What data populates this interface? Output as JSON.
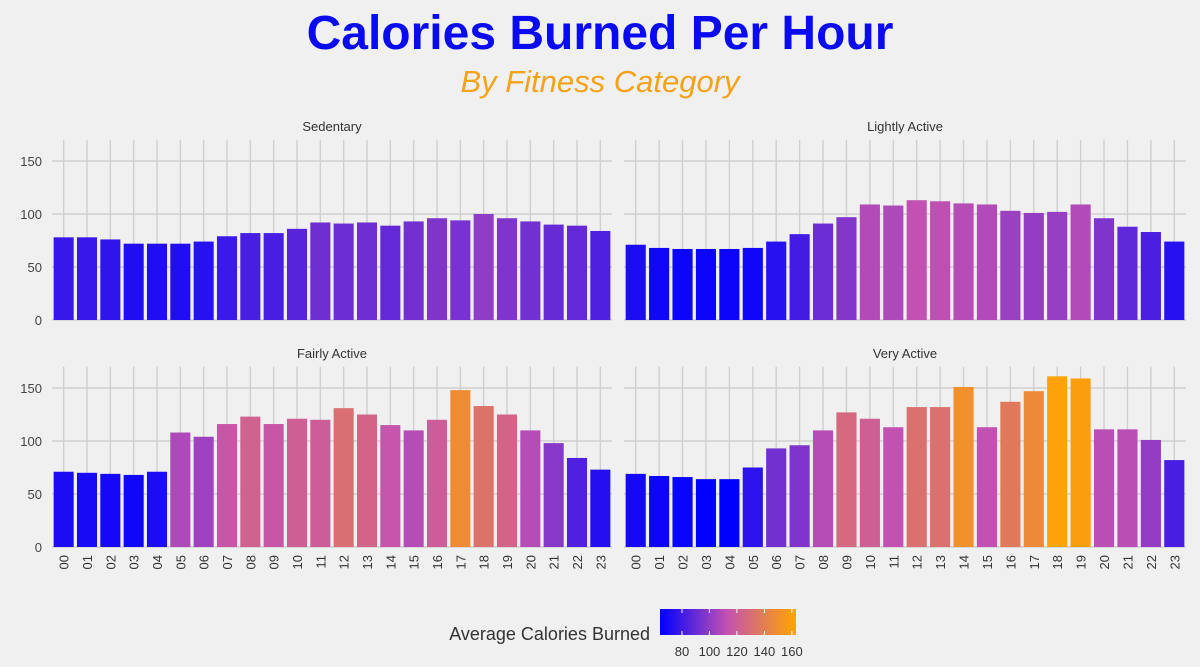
{
  "title": "Calories Burned Per Hour",
  "subtitle": "By Fitness Category",
  "chart_data": {
    "type": "bar",
    "categories": [
      "00",
      "01",
      "02",
      "03",
      "04",
      "05",
      "06",
      "07",
      "08",
      "09",
      "10",
      "11",
      "12",
      "13",
      "14",
      "15",
      "16",
      "17",
      "18",
      "19",
      "20",
      "21",
      "22",
      "23"
    ],
    "ylim": [
      0,
      170
    ],
    "yticks": [
      0,
      50,
      100,
      150
    ],
    "grid": true,
    "panels": [
      {
        "name": "Sedentary",
        "values": [
          78,
          78,
          76,
          72,
          72,
          72,
          74,
          79,
          82,
          82,
          86,
          92,
          91,
          92,
          89,
          93,
          96,
          94,
          100,
          96,
          93,
          90,
          89,
          84
        ]
      },
      {
        "name": "Lightly Active",
        "values": [
          71,
          68,
          67,
          67,
          67,
          68,
          74,
          81,
          91,
          97,
          109,
          108,
          113,
          112,
          110,
          109,
          103,
          101,
          102,
          109,
          96,
          88,
          83,
          74
        ]
      },
      {
        "name": "Fairly Active",
        "values": [
          71,
          70,
          69,
          68,
          71,
          108,
          104,
          116,
          123,
          116,
          121,
          120,
          131,
          125,
          115,
          110,
          120,
          148,
          133,
          125,
          110,
          98,
          84,
          73
        ]
      },
      {
        "name": "Very Active",
        "values": [
          69,
          67,
          66,
          64,
          64,
          75,
          93,
          96,
          110,
          127,
          121,
          113,
          132,
          132,
          151,
          113,
          137,
          147,
          161,
          159,
          111,
          111,
          101,
          82
        ]
      }
    ],
    "legend": {
      "title": "Average Calories Burned",
      "position": "bottom",
      "ticks": [
        80,
        100,
        120,
        140,
        160
      ],
      "min": 64,
      "max": 163,
      "color_low": "#0000ff",
      "color_mid": "#c452b0",
      "color_high": "#ffa500"
    }
  }
}
